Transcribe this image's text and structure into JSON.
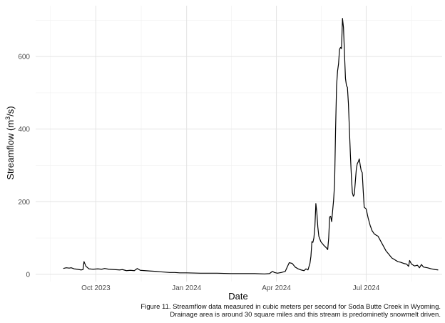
{
  "chart_data": {
    "type": "line",
    "xlabel": "Date",
    "ylabel_main": "Streamflow (m",
    "ylabel_sup": "3",
    "ylabel_tail": "/s)",
    "x_ticks": [
      {
        "date": "2023-10-01",
        "label": "Oct 2023"
      },
      {
        "date": "2024-01-01",
        "label": "Jan 2024"
      },
      {
        "date": "2024-04-01",
        "label": "Apr 2024"
      },
      {
        "date": "2024-07-01",
        "label": "Jul 2024"
      }
    ],
    "y_ticks": [
      0,
      200,
      400,
      600
    ],
    "xlim": [
      "2023-08-01",
      "2024-09-16"
    ],
    "ylim": [
      -20,
      740
    ],
    "grid": true,
    "line_color": "#000000",
    "series": [
      {
        "points": [
          [
            "2023-08-29",
            16
          ],
          [
            "2023-09-01",
            18
          ],
          [
            "2023-09-04",
            17
          ],
          [
            "2023-09-06",
            18
          ],
          [
            "2023-09-09",
            15
          ],
          [
            "2023-09-12",
            14
          ],
          [
            "2023-09-16",
            12
          ],
          [
            "2023-09-18",
            13
          ],
          [
            "2023-09-19",
            35
          ],
          [
            "2023-09-21",
            22
          ],
          [
            "2023-09-24",
            15
          ],
          [
            "2023-09-28",
            14
          ],
          [
            "2023-10-03",
            15
          ],
          [
            "2023-10-07",
            14
          ],
          [
            "2023-10-10",
            16
          ],
          [
            "2023-10-14",
            14
          ],
          [
            "2023-10-20",
            13
          ],
          [
            "2023-10-25",
            12
          ],
          [
            "2023-10-28",
            13
          ],
          [
            "2023-11-01",
            10
          ],
          [
            "2023-11-05",
            11
          ],
          [
            "2023-11-09",
            10
          ],
          [
            "2023-11-12",
            16
          ],
          [
            "2023-11-15",
            11
          ],
          [
            "2023-11-20",
            10
          ],
          [
            "2023-11-25",
            9
          ],
          [
            "2023-12-01",
            8
          ],
          [
            "2023-12-05",
            7
          ],
          [
            "2023-12-10",
            6
          ],
          [
            "2023-12-15",
            5
          ],
          [
            "2023-12-20",
            5
          ],
          [
            "2023-12-25",
            4
          ],
          [
            "2024-01-01",
            4
          ],
          [
            "2024-01-15",
            3
          ],
          [
            "2024-02-01",
            3
          ],
          [
            "2024-02-15",
            2
          ],
          [
            "2024-03-01",
            2
          ],
          [
            "2024-03-10",
            2
          ],
          [
            "2024-03-20",
            1
          ],
          [
            "2024-03-25",
            2
          ],
          [
            "2024-03-28",
            8
          ],
          [
            "2024-03-30",
            5
          ],
          [
            "2024-04-02",
            3
          ],
          [
            "2024-04-06",
            5
          ],
          [
            "2024-04-10",
            8
          ],
          [
            "2024-04-12",
            20
          ],
          [
            "2024-04-14",
            32
          ],
          [
            "2024-04-17",
            30
          ],
          [
            "2024-04-20",
            20
          ],
          [
            "2024-04-23",
            15
          ],
          [
            "2024-04-26",
            12
          ],
          [
            "2024-04-29",
            10
          ],
          [
            "2024-05-01",
            15
          ],
          [
            "2024-05-03",
            12
          ],
          [
            "2024-05-05",
            30
          ],
          [
            "2024-05-06",
            50
          ],
          [
            "2024-05-07",
            90
          ],
          [
            "2024-05-08",
            88
          ],
          [
            "2024-05-09",
            100
          ],
          [
            "2024-05-10",
            130
          ],
          [
            "2024-05-11",
            195
          ],
          [
            "2024-05-12",
            170
          ],
          [
            "2024-05-13",
            130
          ],
          [
            "2024-05-14",
            105
          ],
          [
            "2024-05-16",
            90
          ],
          [
            "2024-05-19",
            80
          ],
          [
            "2024-05-22",
            72
          ],
          [
            "2024-05-23",
            68
          ],
          [
            "2024-05-24",
            100
          ],
          [
            "2024-05-25",
            158
          ],
          [
            "2024-05-26",
            160
          ],
          [
            "2024-05-27",
            145
          ],
          [
            "2024-05-28",
            175
          ],
          [
            "2024-05-29",
            205
          ],
          [
            "2024-05-30",
            250
          ],
          [
            "2024-05-31",
            400
          ],
          [
            "2024-06-01",
            520
          ],
          [
            "2024-06-02",
            560
          ],
          [
            "2024-06-03",
            580
          ],
          [
            "2024-06-04",
            620
          ],
          [
            "2024-06-05",
            625
          ],
          [
            "2024-06-06",
            622
          ],
          [
            "2024-06-07",
            705
          ],
          [
            "2024-06-08",
            680
          ],
          [
            "2024-06-09",
            610
          ],
          [
            "2024-06-10",
            540
          ],
          [
            "2024-06-11",
            520
          ],
          [
            "2024-06-12",
            515
          ],
          [
            "2024-06-13",
            470
          ],
          [
            "2024-06-14",
            400
          ],
          [
            "2024-06-15",
            330
          ],
          [
            "2024-06-16",
            270
          ],
          [
            "2024-06-17",
            225
          ],
          [
            "2024-06-18",
            215
          ],
          [
            "2024-06-19",
            220
          ],
          [
            "2024-06-20",
            255
          ],
          [
            "2024-06-21",
            290
          ],
          [
            "2024-06-22",
            305
          ],
          [
            "2024-06-23",
            310
          ],
          [
            "2024-06-24",
            318
          ],
          [
            "2024-06-25",
            300
          ],
          [
            "2024-06-26",
            285
          ],
          [
            "2024-06-27",
            280
          ],
          [
            "2024-06-28",
            230
          ],
          [
            "2024-06-29",
            185
          ],
          [
            "2024-07-01",
            180
          ],
          [
            "2024-07-03",
            155
          ],
          [
            "2024-07-05",
            135
          ],
          [
            "2024-07-07",
            120
          ],
          [
            "2024-07-09",
            112
          ],
          [
            "2024-07-11",
            108
          ],
          [
            "2024-07-13",
            105
          ],
          [
            "2024-07-15",
            95
          ],
          [
            "2024-07-18",
            80
          ],
          [
            "2024-07-21",
            65
          ],
          [
            "2024-07-24",
            55
          ],
          [
            "2024-07-27",
            45
          ],
          [
            "2024-07-30",
            40
          ],
          [
            "2024-08-02",
            35
          ],
          [
            "2024-08-05",
            33
          ],
          [
            "2024-08-08",
            30
          ],
          [
            "2024-08-11",
            28
          ],
          [
            "2024-08-13",
            22
          ],
          [
            "2024-08-14",
            38
          ],
          [
            "2024-08-16",
            28
          ],
          [
            "2024-08-19",
            23
          ],
          [
            "2024-08-22",
            25
          ],
          [
            "2024-08-24",
            18
          ],
          [
            "2024-08-26",
            27
          ],
          [
            "2024-08-28",
            20
          ],
          [
            "2024-09-01",
            18
          ],
          [
            "2024-09-05",
            15
          ],
          [
            "2024-09-09",
            13
          ],
          [
            "2024-09-12",
            12
          ]
        ]
      }
    ]
  },
  "caption": {
    "line1": "Figure 11. Streamflow data measured in cubic meters per second for Soda Butte Creek in Wyoming.",
    "line2": "Drainage area is around 30 square miles and this stream is predominetly snowmelt driven."
  }
}
